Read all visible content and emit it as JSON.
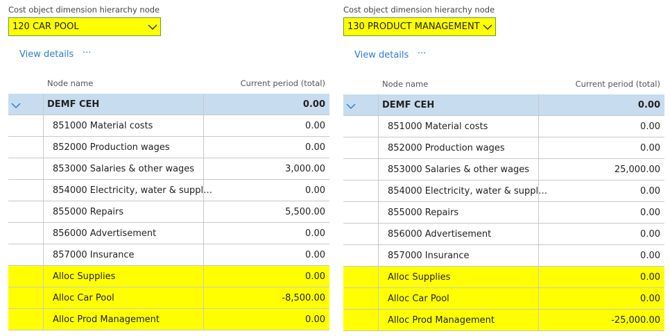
{
  "panels": [
    {
      "label": "Cost object dimension hierarchy node",
      "dropdown": "120 CAR POOL",
      "view_details": "View details",
      "more": "···",
      "columns": [
        "Node name",
        "Current period (total)"
      ],
      "root": {
        "name": "DEMF CEH",
        "value": "0.00",
        "color": "#c7dcef"
      },
      "rows": [
        {
          "name": "851000 Material costs",
          "value": "0.00",
          "color": "#ffffff"
        },
        {
          "name": "852000 Production wages",
          "value": "0.00",
          "color": "#ffffff"
        },
        {
          "name": "853000 Salaries & other wages",
          "value": "3,000.00",
          "color": "#ffffff"
        },
        {
          "name": "854000 Electricity, water & suppl…",
          "value": "0.00",
          "color": "#ffffff"
        },
        {
          "name": "855000 Repairs",
          "value": "5,500.00",
          "color": "#ffffff"
        },
        {
          "name": "856000 Advertisement",
          "value": "0.00",
          "color": "#ffffff"
        },
        {
          "name": "857000 Insurance",
          "value": "0.00",
          "color": "#ffffff"
        },
        {
          "name": "Alloc Supplies",
          "value": "0.00",
          "color": "#ffff00"
        },
        {
          "name": "Alloc Car Pool",
          "value": "-8,500.00",
          "color": "#ffff00"
        },
        {
          "name": "Alloc Prod Management",
          "value": "0.00",
          "color": "#ffff00"
        }
      ]
    },
    {
      "label": "Cost object dimension hierarchy node",
      "dropdown": "130 PRODUCT MANAGEMENT",
      "view_details": "View details",
      "more": "···",
      "columns": [
        "Node name",
        "Current period (total)"
      ],
      "root": {
        "name": "DEMF CEH",
        "value": "0.00",
        "color": "#c7dcef"
      },
      "rows": [
        {
          "name": "851000 Material costs",
          "value": "0.00",
          "color": "#ffffff"
        },
        {
          "name": "852000 Production wages",
          "value": "0.00",
          "color": "#ffffff"
        },
        {
          "name": "853000 Salaries & other wages",
          "value": "25,000.00",
          "color": "#ffffff"
        },
        {
          "name": "854000 Electricity, water & suppl…",
          "value": "0.00",
          "color": "#ffffff"
        },
        {
          "name": "855000 Repairs",
          "value": "0.00",
          "color": "#ffffff"
        },
        {
          "name": "856000 Advertisement",
          "value": "0.00",
          "color": "#ffffff"
        },
        {
          "name": "857000 Insurance",
          "value": "0.00",
          "color": "#ffffff"
        },
        {
          "name": "Alloc Supplies",
          "value": "0.00",
          "color": "#ffff00"
        },
        {
          "name": "Alloc Car Pool",
          "value": "0.00",
          "color": "#ffff00"
        },
        {
          "name": "Alloc Prod Management",
          "value": "-25,000.00",
          "color": "#ffff00"
        }
      ]
    }
  ]
}
